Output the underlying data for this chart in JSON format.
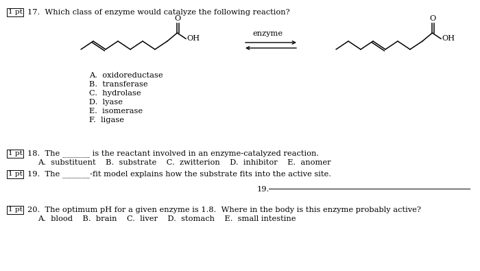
{
  "bg_color": "#ffffff",
  "text_color": "#000000",
  "figsize": [
    7.0,
    3.95
  ],
  "dpi": 100,
  "q17_box": "1 pt",
  "q17_text": "17.  Which class of enzyme would catalyze the following reaction?",
  "enzyme_label": "enzyme",
  "options_17": [
    "A.  oxidoreductase",
    "B.  transferase",
    "C.  hydrolase",
    "D.  lyase",
    "E.  isomerase",
    "F.  ligase"
  ],
  "q18_box": "1 pt",
  "q18_text": "18.  The _______ is the reactant involved in an enzyme-catalyzed reaction.",
  "q18_options": "A.  substituent    B.  substrate    C.  zwitterion    D.  inhibitor    E.  anomer",
  "q19_box": "1 pt",
  "q19_text": "19.  The _______-fit model explains how the substrate fits into the active site.",
  "q20_box": "1 pt",
  "q20_text": "20.  The optimum pH for a given enzyme is 1.8.  Where in the body is this enzyme probably active?",
  "q20_options": "A.  blood    B.  brain    C.  liver    D.  stomach    E.  small intestine"
}
